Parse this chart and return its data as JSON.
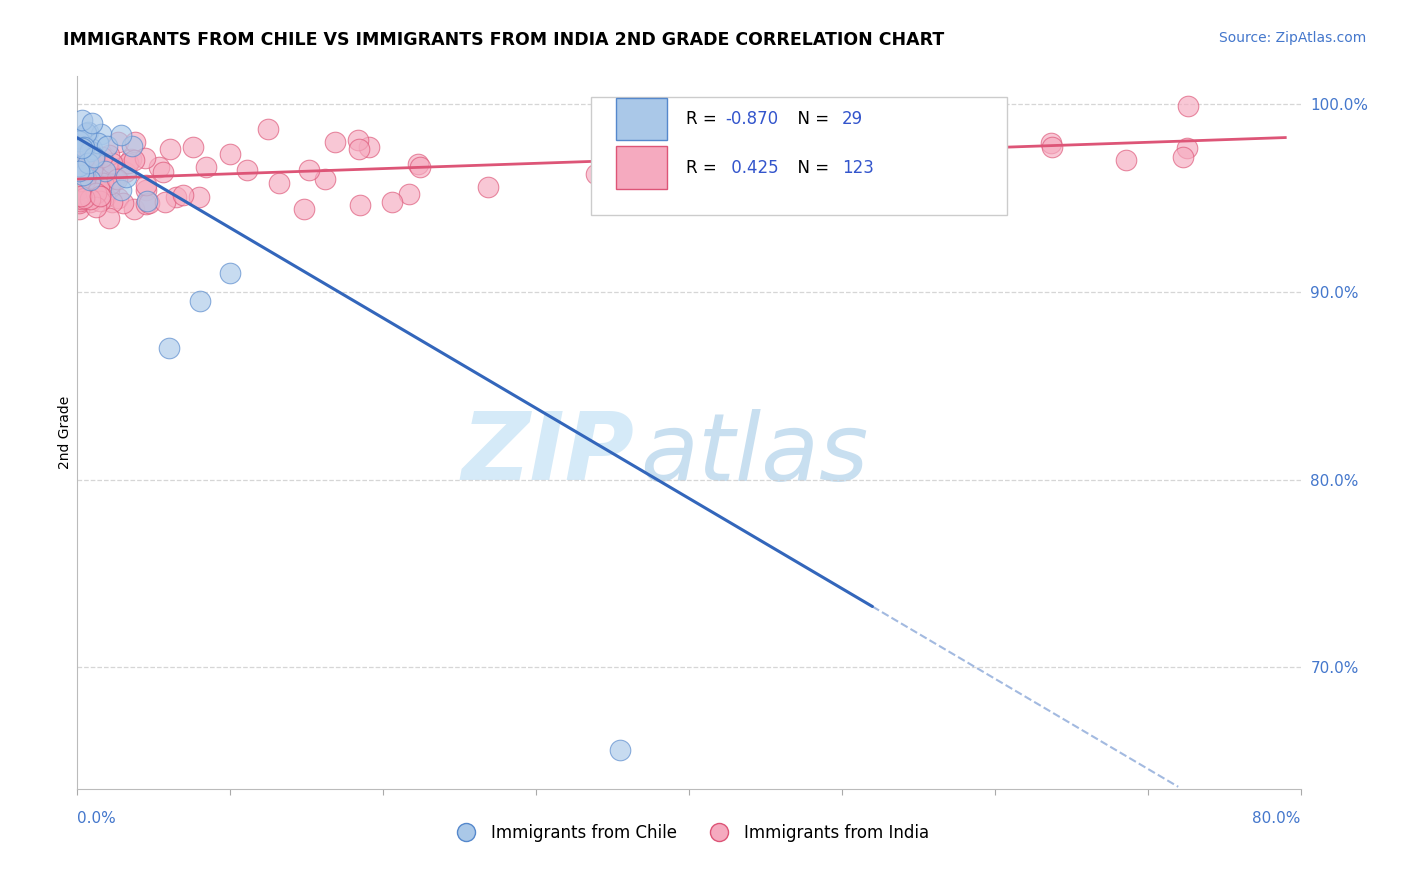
{
  "title": "IMMIGRANTS FROM CHILE VS IMMIGRANTS FROM INDIA 2ND GRADE CORRELATION CHART",
  "source_text": "Source: ZipAtlas.com",
  "ylabel": "2nd Grade",
  "y_tick_labels": [
    "70.0%",
    "80.0%",
    "90.0%",
    "100.0%"
  ],
  "y_tick_values": [
    0.7,
    0.8,
    0.9,
    1.0
  ],
  "xlim": [
    0.0,
    0.8
  ],
  "ylim": [
    0.635,
    1.015
  ],
  "chile_color": "#aac8e8",
  "india_color": "#f5aabf",
  "chile_edge_color": "#5588cc",
  "india_edge_color": "#dd5577",
  "chile_line_color": "#3366bb",
  "india_line_color": "#dd5577",
  "legend_r_chile": "-0.870",
  "legend_n_chile": "29",
  "legend_r_india": "0.425",
  "legend_n_india": "123",
  "legend_label_chile": "Immigrants from Chile",
  "legend_label_india": "Immigrants from India",
  "watermark_zip": "ZIP",
  "watermark_atlas": "atlas",
  "grid_color": "#cccccc",
  "r_color": "#3355cc",
  "n_color": "#3355cc",
  "chile_intercept": 0.982,
  "chile_slope": -0.48,
  "india_intercept": 0.96,
  "india_slope": 0.028
}
